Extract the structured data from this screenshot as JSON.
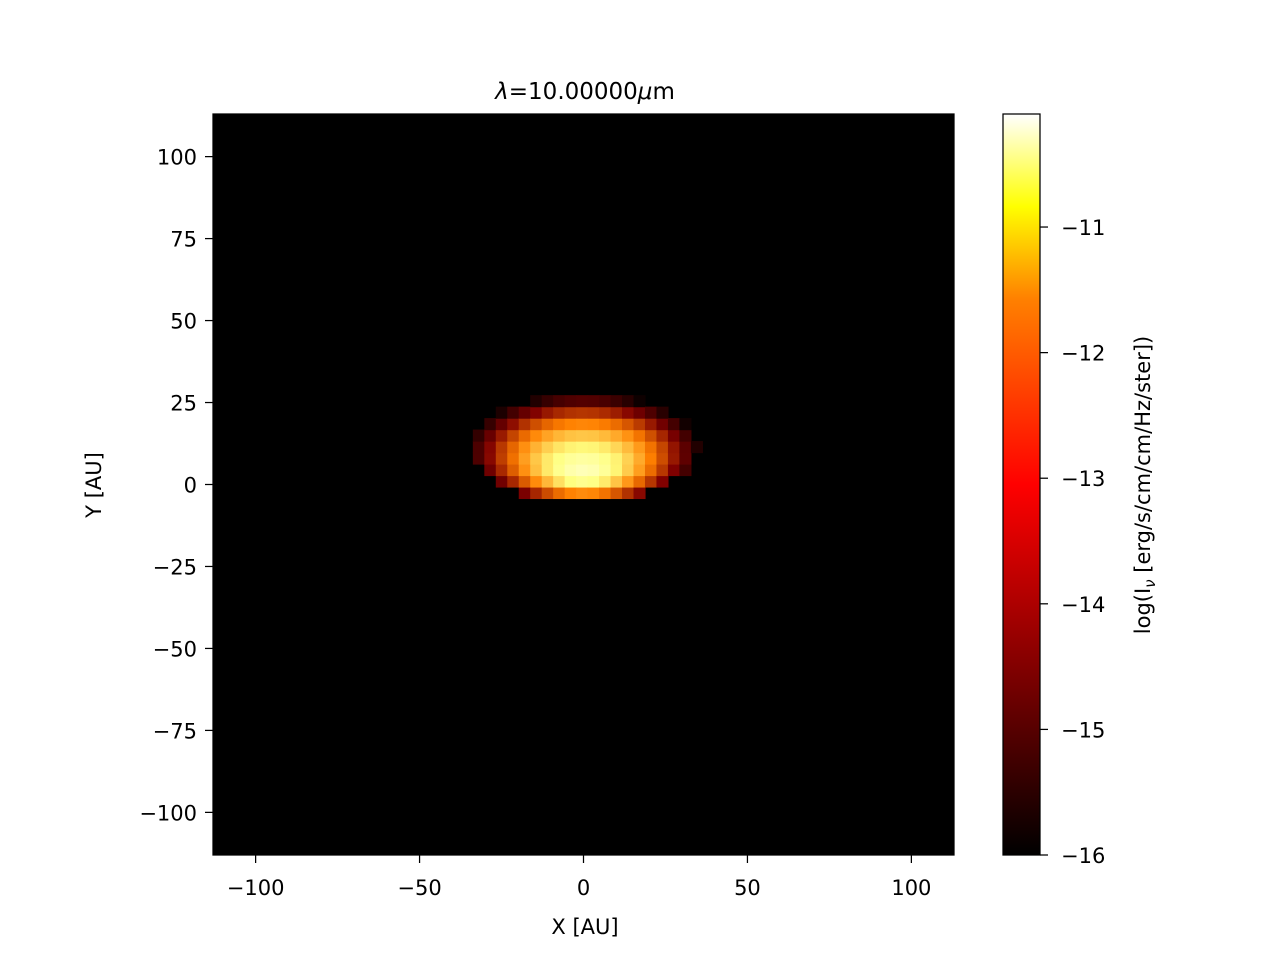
{
  "chart_data": {
    "type": "heatmap",
    "title": "λ=10.00000μm",
    "title_parts": {
      "symbol": "λ",
      "value": "=10.00000",
      "unit_symbol": "μ",
      "unit": "m"
    },
    "xlabel": "X [AU]",
    "ylabel": "Y [AU]",
    "xlim": [
      -113,
      113
    ],
    "ylim": [
      -113,
      113
    ],
    "xticks": [
      -100,
      -50,
      0,
      50,
      100
    ],
    "yticks": [
      -100,
      -75,
      -50,
      -25,
      0,
      25,
      50,
      75,
      100
    ],
    "xtick_labels": [
      "−100",
      "−50",
      "0",
      "50",
      "100"
    ],
    "ytick_labels": [
      "−100",
      "−75",
      "−50",
      "−25",
      "0",
      "25",
      "50",
      "75",
      "100"
    ],
    "colormap": "afmhot",
    "colorbar": {
      "label": "log(I_ν [erg/s/cm/cm/Hz/ster])",
      "label_parts": {
        "pre": "log(I",
        "sub": "ν",
        "post": " [erg/s/cm/cm/Hz/ster])"
      },
      "range": [
        -16,
        -10.1
      ],
      "ticks": [
        -16,
        -15,
        -14,
        -13,
        -12,
        -11
      ],
      "tick_labels": [
        "−16",
        "−15",
        "−14",
        "−13",
        "−12",
        "−11"
      ]
    },
    "grid": "off",
    "legend": "none",
    "pixel_size_au": 3.5,
    "emission": {
      "description_units": "AU",
      "disk_center": [
        0,
        12
      ],
      "disk_semi_axes": [
        35,
        17
      ],
      "disk_cut_below_y": -3,
      "peak_center": [
        0,
        2
      ],
      "peak_value": -10.1,
      "background_value": -16
    }
  }
}
